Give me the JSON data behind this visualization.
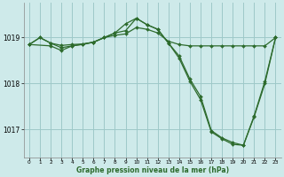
{
  "background_color": "#ceeaea",
  "grid_color": "#9ec8c8",
  "line_color": "#2d6b2d",
  "marker_color": "#2d6b2d",
  "xlabel": "Graphe pression niveau de la mer (hPa)",
  "xlim": [
    -0.5,
    23.5
  ],
  "ylim": [
    1016.4,
    1019.75
  ],
  "yticks": [
    1017,
    1018,
    1019
  ],
  "xticks": [
    0,
    1,
    2,
    3,
    4,
    5,
    6,
    7,
    8,
    9,
    10,
    11,
    12,
    13,
    14,
    15,
    16,
    17,
    18,
    19,
    20,
    21,
    22,
    23
  ],
  "series1_x": [
    0,
    1,
    2,
    3,
    4,
    5,
    6,
    7,
    8,
    9,
    10,
    11,
    12,
    13,
    14,
    15,
    16,
    17,
    18,
    19,
    20,
    21,
    22,
    23
  ],
  "series1_y": [
    1018.85,
    1019.0,
    1018.88,
    1018.83,
    1018.85,
    1018.86,
    1018.9,
    1019.0,
    1019.05,
    1019.08,
    1019.22,
    1019.18,
    1019.1,
    1018.92,
    1018.85,
    1018.82,
    1018.82,
    1018.82,
    1018.82,
    1018.82,
    1018.82,
    1018.82,
    1018.82,
    1019.0
  ],
  "series2_x": [
    0,
    1,
    2,
    3,
    4,
    5,
    6,
    7,
    8,
    9,
    10,
    11,
    12,
    13,
    14,
    15,
    16,
    17,
    18,
    19,
    20,
    21,
    22,
    23
  ],
  "series2_y": [
    1018.85,
    1019.0,
    1018.88,
    1018.78,
    1018.82,
    1018.85,
    1018.9,
    1019.0,
    1019.1,
    1019.3,
    1019.42,
    1019.28,
    1019.18,
    1018.88,
    1018.55,
    1018.05,
    1017.65,
    1016.95,
    1016.8,
    1016.68,
    1016.66,
    1017.28,
    1018.0,
    1019.0
  ],
  "series3_x": [
    0,
    2,
    3,
    4,
    6,
    7,
    8,
    9,
    10,
    11,
    12,
    13,
    14,
    15,
    16,
    17,
    18,
    19,
    20,
    21,
    22,
    23
  ],
  "series3_y": [
    1018.85,
    1018.82,
    1018.72,
    1018.82,
    1018.9,
    1019.0,
    1019.1,
    1019.15,
    1019.42,
    1019.28,
    1019.18,
    1018.88,
    1018.6,
    1018.1,
    1017.72,
    1016.98,
    1016.82,
    1016.72,
    1016.66,
    1017.3,
    1018.05,
    1019.0
  ]
}
